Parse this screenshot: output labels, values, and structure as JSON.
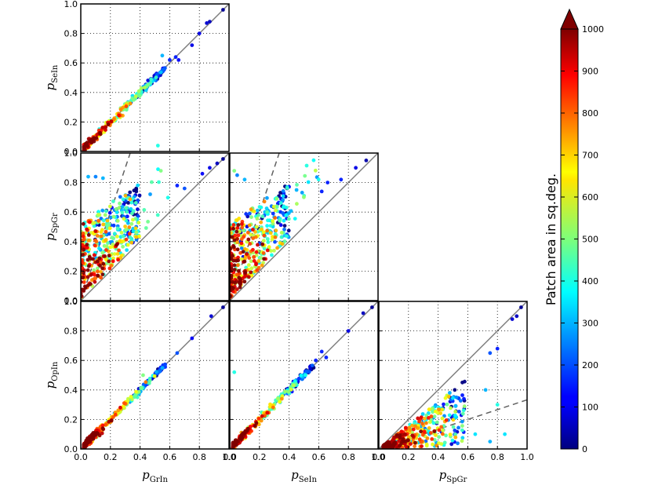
{
  "chart_data": {
    "type": "scatter",
    "title": "",
    "grid": true,
    "panels": [
      {
        "id": "grin-vs-sein",
        "xlabel": {
          "main": "p",
          "sub": "GrIn"
        },
        "ylabel": {
          "main": "p",
          "sub": "SeIn"
        },
        "xlim": [
          0,
          1
        ],
        "ylim": [
          0,
          1
        ],
        "reference_lines": [
          {
            "slope": 1,
            "style": "solid"
          }
        ],
        "trend": {
          "slope": 1.0,
          "x_range": [
            0.0,
            0.98
          ]
        },
        "highlight_points": [
          {
            "x": 0.52,
            "y": 0.04,
            "area": 400
          },
          {
            "x": 0.55,
            "y": 0.65,
            "area": 300
          },
          {
            "x": 0.6,
            "y": 0.62,
            "area": 150
          },
          {
            "x": 0.64,
            "y": 0.64,
            "area": 150
          },
          {
            "x": 0.66,
            "y": 0.62,
            "area": 120
          },
          {
            "x": 0.75,
            "y": 0.72,
            "area": 100
          },
          {
            "x": 0.8,
            "y": 0.8,
            "area": 100
          },
          {
            "x": 0.85,
            "y": 0.87,
            "area": 80
          },
          {
            "x": 0.87,
            "y": 0.88,
            "area": 60
          },
          {
            "x": 0.96,
            "y": 0.96,
            "area": 20
          }
        ]
      },
      {
        "id": "grin-vs-spgr",
        "xlabel": {
          "main": "p",
          "sub": "GrIn"
        },
        "ylabel": {
          "main": "p",
          "sub": "SpGr"
        },
        "xlim": [
          0,
          1
        ],
        "ylim": [
          0,
          1
        ],
        "reference_lines": [
          {
            "slope": 1,
            "style": "solid"
          },
          {
            "slope": 3,
            "style": "dashed"
          }
        ],
        "highlight_points": [
          {
            "x": 0.05,
            "y": 0.84,
            "area": 300
          },
          {
            "x": 0.1,
            "y": 0.84,
            "area": 250
          },
          {
            "x": 0.15,
            "y": 0.83,
            "area": 300
          },
          {
            "x": 0.54,
            "y": 0.88,
            "area": 500
          },
          {
            "x": 0.65,
            "y": 0.78,
            "area": 150
          },
          {
            "x": 0.7,
            "y": 0.76,
            "area": 200
          },
          {
            "x": 0.82,
            "y": 0.86,
            "area": 120
          },
          {
            "x": 0.87,
            "y": 0.9,
            "area": 100
          },
          {
            "x": 0.92,
            "y": 0.93,
            "area": 60
          },
          {
            "x": 0.96,
            "y": 0.96,
            "area": 20
          }
        ]
      },
      {
        "id": "sein-vs-spgr",
        "xlabel": {
          "main": "p",
          "sub": "SeIn"
        },
        "ylabel": {
          "main": "p",
          "sub": "SpGr"
        },
        "xlim": [
          0,
          1
        ],
        "ylim": [
          0,
          1
        ],
        "reference_lines": [
          {
            "slope": 1,
            "style": "solid"
          },
          {
            "slope": 3,
            "style": "dashed"
          }
        ],
        "highlight_points": [
          {
            "x": 0.03,
            "y": 0.88,
            "area": 500
          },
          {
            "x": 0.05,
            "y": 0.85,
            "area": 250
          },
          {
            "x": 0.1,
            "y": 0.82,
            "area": 300
          },
          {
            "x": 0.45,
            "y": 0.75,
            "area": 300
          },
          {
            "x": 0.62,
            "y": 0.74,
            "area": 150
          },
          {
            "x": 0.66,
            "y": 0.8,
            "area": 150
          },
          {
            "x": 0.75,
            "y": 0.82,
            "area": 150
          },
          {
            "x": 0.85,
            "y": 0.9,
            "area": 100
          },
          {
            "x": 0.92,
            "y": 0.95,
            "area": 40
          }
        ]
      },
      {
        "id": "grin-vs-opin",
        "xlabel": {
          "main": "p",
          "sub": "GrIn"
        },
        "ylabel": {
          "main": "p",
          "sub": "OpIn"
        },
        "xlim": [
          0,
          1
        ],
        "ylim": [
          0,
          1
        ],
        "reference_lines": [
          {
            "slope": 1,
            "style": "solid"
          }
        ],
        "trend": {
          "slope": 1.0,
          "x_range": [
            0.0,
            0.98
          ]
        },
        "highlight_points": [
          {
            "x": 0.42,
            "y": 0.5,
            "area": 500
          },
          {
            "x": 0.55,
            "y": 0.55,
            "area": 300
          },
          {
            "x": 0.65,
            "y": 0.65,
            "area": 200
          },
          {
            "x": 0.75,
            "y": 0.75,
            "area": 120
          },
          {
            "x": 0.88,
            "y": 0.9,
            "area": 80
          },
          {
            "x": 0.96,
            "y": 0.96,
            "area": 20
          }
        ]
      },
      {
        "id": "sein-vs-opin",
        "xlabel": {
          "main": "p",
          "sub": "SeIn"
        },
        "ylabel": {
          "main": "p",
          "sub": "OpIn"
        },
        "xlim": [
          0,
          1
        ],
        "ylim": [
          0,
          1
        ],
        "reference_lines": [
          {
            "slope": 1,
            "style": "solid"
          }
        ],
        "trend": {
          "slope": 1.0,
          "x_range": [
            0.0,
            0.98
          ]
        },
        "highlight_points": [
          {
            "x": 0.03,
            "y": 0.52,
            "area": 400
          },
          {
            "x": 0.58,
            "y": 0.6,
            "area": 150
          },
          {
            "x": 0.62,
            "y": 0.66,
            "area": 150
          },
          {
            "x": 0.65,
            "y": 0.62,
            "area": 150
          },
          {
            "x": 0.8,
            "y": 0.8,
            "area": 100
          },
          {
            "x": 0.9,
            "y": 0.92,
            "area": 60
          },
          {
            "x": 0.96,
            "y": 0.96,
            "area": 20
          }
        ]
      },
      {
        "id": "spgr-vs-opin",
        "xlabel": {
          "main": "p",
          "sub": "SpGr"
        },
        "ylabel": {
          "main": "p",
          "sub": "OpIn"
        },
        "xlim": [
          0,
          1
        ],
        "ylim": [
          0,
          1
        ],
        "reference_lines": [
          {
            "slope": 1,
            "style": "solid"
          },
          {
            "slope": 0.333,
            "style": "dashed"
          }
        ],
        "highlight_points": [
          {
            "x": 0.75,
            "y": 0.65,
            "area": 200
          },
          {
            "x": 0.8,
            "y": 0.68,
            "area": 150
          },
          {
            "x": 0.72,
            "y": 0.4,
            "area": 300
          },
          {
            "x": 0.8,
            "y": 0.3,
            "area": 400
          },
          {
            "x": 0.85,
            "y": 0.1,
            "area": 350
          },
          {
            "x": 0.9,
            "y": 0.88,
            "area": 80
          },
          {
            "x": 0.93,
            "y": 0.9,
            "area": 60
          },
          {
            "x": 0.96,
            "y": 0.96,
            "area": 20
          },
          {
            "x": 0.65,
            "y": 0.1,
            "area": 350
          },
          {
            "x": 0.75,
            "y": 0.05,
            "area": 300
          }
        ]
      }
    ],
    "ticks": [
      "0.0",
      "0.2",
      "0.4",
      "0.6",
      "0.8",
      "1.0"
    ],
    "colorbar": {
      "label": "Patch area in sq.deg.",
      "range": [
        0,
        1000
      ],
      "colormap": "jet",
      "extend": "max",
      "ticks": [
        "0",
        "100",
        "200",
        "300",
        "400",
        "500",
        "600",
        "700",
        "800",
        "900",
        "1000"
      ]
    }
  },
  "colors": {
    "reference_line": "#808080",
    "dashed_line": "#606060",
    "grid": "#000000",
    "extend_triangle": "#800000"
  }
}
